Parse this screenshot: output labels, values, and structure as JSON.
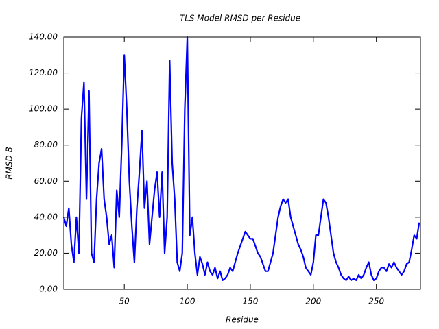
{
  "chart_data": {
    "type": "line",
    "title": "TLS Model RMSD per Residue",
    "xlabel": "Residue",
    "ylabel": "RMSD B",
    "x": [
      2,
      4,
      6,
      8,
      10,
      12,
      14,
      16,
      18,
      20,
      22,
      24,
      26,
      28,
      30,
      32,
      34,
      36,
      38,
      40,
      42,
      44,
      46,
      48,
      50,
      52,
      54,
      56,
      58,
      60,
      62,
      64,
      66,
      68,
      70,
      72,
      74,
      76,
      78,
      80,
      82,
      84,
      86,
      88,
      90,
      92,
      94,
      96,
      98,
      100,
      102,
      104,
      106,
      108,
      110,
      112,
      114,
      116,
      118,
      120,
      122,
      124,
      126,
      128,
      130,
      132,
      134,
      136,
      138,
      140,
      142,
      144,
      146,
      148,
      150,
      152,
      154,
      156,
      158,
      160,
      162,
      164,
      166,
      168,
      170,
      172,
      174,
      176,
      178,
      180,
      182,
      184,
      186,
      188,
      190,
      192,
      194,
      196,
      198,
      200,
      202,
      204,
      206,
      208,
      210,
      212,
      214,
      216,
      218,
      220,
      222,
      224,
      226,
      228,
      230,
      232,
      234,
      236,
      238,
      240,
      242,
      244,
      246,
      248,
      250,
      252,
      254,
      256,
      258,
      260,
      262,
      264,
      266,
      268,
      270,
      272,
      274,
      276,
      278,
      280,
      282,
      284
    ],
    "series": [
      {
        "name": "RMSD B",
        "color": "#0000ff",
        "values": [
          40,
          35,
          45,
          25,
          15,
          40,
          20,
          95,
          115,
          50,
          110,
          20,
          15,
          50,
          70,
          78,
          50,
          40,
          25,
          30,
          12,
          55,
          40,
          80,
          130,
          100,
          60,
          35,
          15,
          45,
          65,
          88,
          45,
          60,
          25,
          40,
          55,
          65,
          40,
          65,
          20,
          40,
          127,
          70,
          50,
          15,
          10,
          20,
          100,
          140,
          30,
          40,
          20,
          8,
          18,
          14,
          8,
          15,
          10,
          8,
          12,
          6,
          10,
          5,
          6,
          8,
          12,
          10,
          15,
          20,
          24,
          28,
          32,
          30,
          28,
          28,
          24,
          20,
          18,
          14,
          10,
          10,
          15,
          20,
          30,
          40,
          46,
          50,
          48,
          50,
          40,
          35,
          30,
          25,
          22,
          18,
          12,
          10,
          8,
          15,
          30,
          30,
          40,
          50,
          48,
          40,
          30,
          20,
          15,
          12,
          8,
          6,
          5,
          7,
          5,
          6,
          5,
          8,
          6,
          8,
          12,
          15,
          8,
          5,
          6,
          10,
          12,
          12,
          10,
          14,
          12,
          15,
          12,
          10,
          8,
          10,
          14,
          15,
          22,
          30,
          28,
          37
        ]
      }
    ],
    "xlim": [
      2,
      285
    ],
    "xticks": [
      50,
      100,
      150,
      200,
      250
    ],
    "ylim": [
      0,
      140
    ],
    "yticks": [
      {
        "value": 0,
        "label": "0.00"
      },
      {
        "value": 20,
        "label": "20.00"
      },
      {
        "value": 40,
        "label": "40.00"
      },
      {
        "value": 60,
        "label": "60.00"
      },
      {
        "value": 80,
        "label": "80.00"
      },
      {
        "value": 100,
        "label": "100.00"
      },
      {
        "value": 120,
        "label": "120.00"
      },
      {
        "value": 140,
        "label": "140.00"
      }
    ],
    "grid": false
  }
}
